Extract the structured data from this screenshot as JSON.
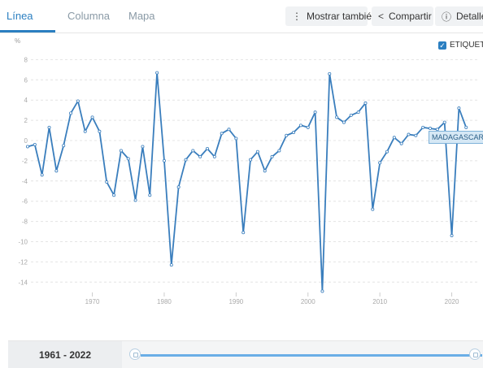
{
  "tabs": [
    {
      "label": "Línea",
      "active": true
    },
    {
      "label": "Columna",
      "active": false
    },
    {
      "label": "Mapa",
      "active": false
    }
  ],
  "toolbar": {
    "show_also": "Mostrar también",
    "share": "Compartir",
    "details": "Detalles",
    "show_also_icon": "more-vertical-icon",
    "share_icon": "share-icon",
    "details_icon": "info-icon"
  },
  "labels_toggle": {
    "label": "ETIQUETA",
    "checked": true
  },
  "range": {
    "label": "1961 - 2022",
    "start": 1961,
    "end": 2022
  },
  "tooltip": "MADAGASCAR",
  "colors": {
    "accent": "#2b7fc1",
    "line": "#3a7ebd"
  },
  "chart_data": {
    "type": "line",
    "ylabel": "%",
    "ylim": [
      -15,
      8
    ],
    "yticks": [
      8,
      6,
      4,
      2,
      0,
      -2,
      -4,
      -6,
      -8,
      -10,
      -12,
      -14
    ],
    "xticks": [
      1970,
      1980,
      1990,
      2000,
      2010,
      2020
    ],
    "grid": true,
    "series": [
      {
        "name": "MADAGASCAR",
        "x": [
          1961,
          1962,
          1963,
          1964,
          1965,
          1966,
          1967,
          1968,
          1969,
          1970,
          1971,
          1972,
          1973,
          1974,
          1975,
          1976,
          1977,
          1978,
          1979,
          1980,
          1981,
          1982,
          1983,
          1984,
          1985,
          1986,
          1987,
          1988,
          1989,
          1990,
          1991,
          1992,
          1993,
          1994,
          1995,
          1996,
          1997,
          1998,
          1999,
          2000,
          2001,
          2002,
          2003,
          2004,
          2005,
          2006,
          2007,
          2008,
          2009,
          2010,
          2011,
          2012,
          2013,
          2014,
          2015,
          2016,
          2017,
          2018,
          2019,
          2020,
          2021,
          2022
        ],
        "values": [
          -0.6,
          -0.4,
          -3.4,
          1.3,
          -3.0,
          -0.5,
          2.7,
          3.9,
          0.9,
          2.3,
          0.9,
          -4.1,
          -5.4,
          -1.0,
          -1.8,
          -5.9,
          -0.6,
          -5.4,
          6.7,
          -2.0,
          -12.3,
          -4.6,
          -1.9,
          -1.0,
          -1.6,
          -0.8,
          -1.6,
          0.7,
          1.1,
          0.2,
          -9.1,
          -1.9,
          -1.1,
          -3.0,
          -1.6,
          -1.0,
          0.5,
          0.8,
          1.5,
          1.3,
          2.8,
          -14.9,
          6.6,
          2.3,
          1.8,
          2.5,
          2.8,
          3.7,
          -6.8,
          -2.2,
          -1.1,
          0.3,
          -0.3,
          0.6,
          0.5,
          1.3,
          1.2,
          1.1,
          1.8,
          -9.4,
          3.2,
          1.3
        ]
      }
    ]
  }
}
